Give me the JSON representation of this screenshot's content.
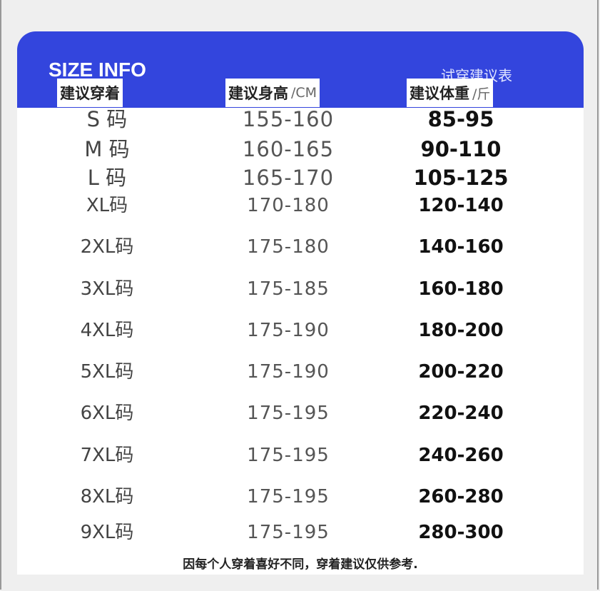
{
  "header": {
    "title": "SIZE INFO",
    "subtitle": "试穿建议表",
    "accent_color": "#3345dd"
  },
  "columns": [
    {
      "label": "建议穿着",
      "unit": ""
    },
    {
      "label": "建议身高",
      "unit": "/CM"
    },
    {
      "label": "建议体重",
      "unit": "/斤"
    }
  ],
  "rows": [
    {
      "size": "S 码",
      "height": "155-160",
      "weight": "85-95"
    },
    {
      "size": "M 码",
      "height": "160-165",
      "weight": "90-110"
    },
    {
      "size": "L  码",
      "height": "165-170",
      "weight": "105-125"
    },
    {
      "size": "XL码",
      "height": "170-180",
      "weight": "120-140"
    },
    {
      "size": "2XL码",
      "height": "175-180",
      "weight": "140-160"
    },
    {
      "size": "3XL码",
      "height": "175-185",
      "weight": "160-180"
    },
    {
      "size": "4XL码",
      "height": "175-190",
      "weight": "180-200"
    },
    {
      "size": "5XL码",
      "height": "175-190",
      "weight": "200-220"
    },
    {
      "size": "6XL码",
      "height": "175-195",
      "weight": "220-240"
    },
    {
      "size": "7XL码",
      "height": "175-195",
      "weight": "240-260"
    },
    {
      "size": "8XL码",
      "height": "175-195",
      "weight": "260-280"
    },
    {
      "size": "9XL码",
      "height": "175-195",
      "weight": "280-300"
    }
  ],
  "footer": "因每个人穿着喜好不同，穿着建议仅供参考."
}
